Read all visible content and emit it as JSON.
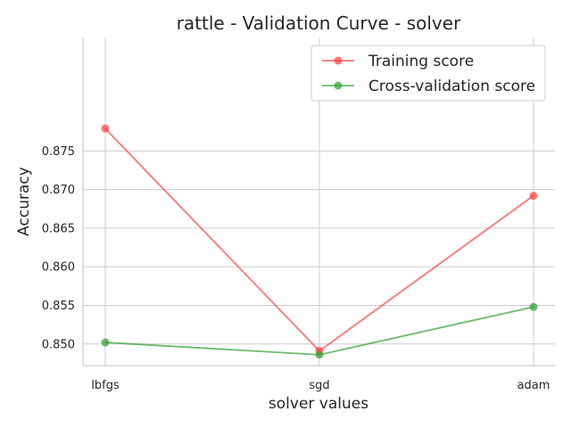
{
  "chart_data": {
    "type": "line",
    "title": "rattle - Validation Curve - solver",
    "xlabel": "solver values",
    "ylabel": "Accuracy",
    "categories": [
      "lbfgs",
      "sgd",
      "adam"
    ],
    "ylim": [
      0.8472,
      0.8897
    ],
    "yticks": [
      0.85,
      0.855,
      0.86,
      0.865,
      0.87,
      0.875
    ],
    "ytick_labels": [
      "0.850",
      "0.855",
      "0.860",
      "0.865",
      "0.870",
      "0.875"
    ],
    "grid": true,
    "legend_position": "top-right",
    "series": [
      {
        "name": "Training score",
        "color": "#ff3b3b",
        "values": [
          0.8779,
          0.8491,
          0.8692
        ]
      },
      {
        "name": "Cross-validation score",
        "color": "#2e9e2e",
        "values": [
          0.8502,
          0.8486,
          0.8548
        ]
      }
    ]
  }
}
